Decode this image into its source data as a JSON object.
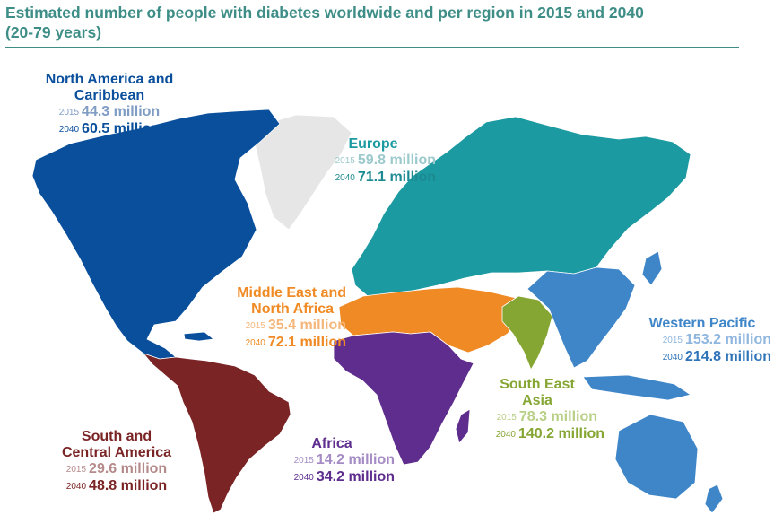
{
  "title_line1": "Estimated number of people with diabetes worldwide and per region in 2015 and 2040",
  "title_line2": "(20-79 years)",
  "colors": {
    "title": "#3e8e87",
    "north_america": "#0a4f9c",
    "europe": "#e6e6e6",
    "europe_asia": "#1c9aa1",
    "mena": "#f08a24",
    "africa": "#5e2d8e",
    "south_america": "#7a2425",
    "south_east_asia": "#86a634",
    "western_pacific": "#3f86c9"
  },
  "regions": {
    "north_america": {
      "name_line1": "North America and",
      "name_line2": "Caribbean",
      "y2015": "2015",
      "v2015": "44.3 million",
      "y2040": "2040",
      "v2040": "60.5 million"
    },
    "europe": {
      "name_line1": "Europe",
      "y2015": "2015",
      "v2015": "59.8 million",
      "y2040": "2040",
      "v2040": "71.1 million"
    },
    "mena": {
      "name_line1": "Middle East and",
      "name_line2": "North Africa",
      "y2015": "2015",
      "v2015": "35.4 million",
      "y2040": "2040",
      "v2040": "72.1 million"
    },
    "western_pacific": {
      "name_line1": "Western Pacific",
      "y2015": "2015",
      "v2015": "153.2 million",
      "y2040": "2040",
      "v2040": "214.8 million"
    },
    "south_east_asia": {
      "name_line1": "South East",
      "name_line2": "Asia",
      "y2015": "2015",
      "v2015": "78.3 million",
      "y2040": "2040",
      "v2040": "140.2 million"
    },
    "africa": {
      "name_line1": "Africa",
      "y2015": "2015",
      "v2015": "14.2 million",
      "y2040": "2040",
      "v2040": "34.2 million"
    },
    "south_america": {
      "name_line1": "South and",
      "name_line2": "Central America",
      "y2015": "2015",
      "v2015": "29.6 million",
      "y2040": "2040",
      "v2040": "48.8 million"
    }
  }
}
